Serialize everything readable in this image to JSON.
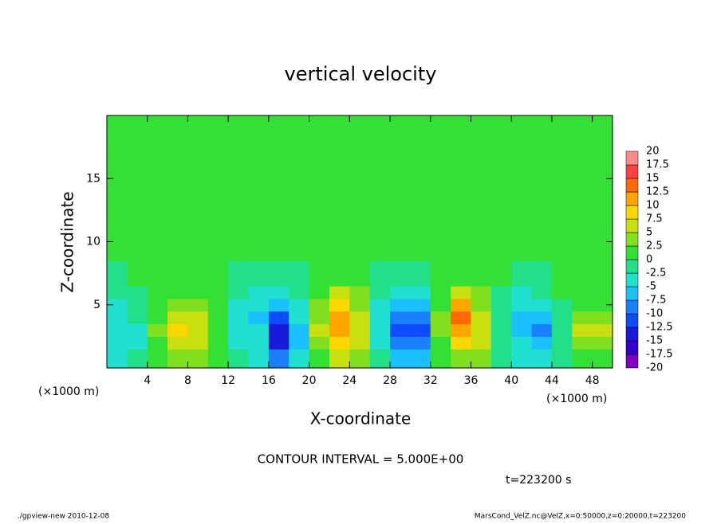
{
  "chart_data": {
    "type": "contour",
    "title": "vertical velocity",
    "x_label": "X-coordinate",
    "y_label": "Z-coordinate",
    "x_unit": "(×1000 m)",
    "contour_interval": "CONTOUR INTERVAL = 5.000E+00",
    "time": "t=223200 s",
    "xlim": [
      0,
      50
    ],
    "ylim": [
      0,
      20
    ],
    "xticks": [
      4,
      8,
      12,
      16,
      20,
      24,
      28,
      32,
      36,
      40,
      44,
      48
    ],
    "yticks": [
      5,
      10,
      15
    ],
    "x": [
      1,
      3,
      5,
      7,
      9,
      11,
      13,
      15,
      17,
      19,
      21,
      23,
      25,
      27,
      29,
      31,
      33,
      35,
      37,
      39,
      41,
      43,
      45,
      47,
      49
    ],
    "y": [
      1,
      2,
      3,
      4,
      5,
      6,
      7,
      10,
      15,
      19
    ],
    "values": [
      [
        -3,
        -2,
        1,
        3,
        3,
        1,
        -2,
        -3,
        -8,
        -4,
        2,
        5,
        3,
        -2,
        -6,
        -6,
        1,
        4,
        3,
        -1,
        -4,
        -5,
        -1,
        2,
        2
      ],
      [
        -4,
        -3,
        2,
        6,
        5,
        2,
        -3,
        -4,
        -13,
        -6,
        4,
        9,
        5,
        -3,
        -9,
        -10,
        2,
        9,
        5,
        -1,
        -5,
        -7,
        -2,
        4,
        4
      ],
      [
        -4,
        -3,
        3,
        8,
        6,
        2,
        -4,
        -5,
        -14,
        -6,
        5,
        12,
        7,
        -4,
        -11,
        -12,
        3,
        12,
        6,
        -1,
        -6,
        -8,
        -2,
        6,
        5
      ],
      [
        -4,
        -2,
        2,
        6,
        5,
        1,
        -5,
        -6,
        -11,
        -5,
        4,
        11,
        6,
        -4,
        -9,
        -10,
        3,
        13,
        6,
        -2,
        -6,
        -6,
        -1,
        4,
        3
      ],
      [
        -3,
        -2,
        1,
        4,
        3,
        1,
        -4,
        -5,
        -6,
        -3,
        3,
        8,
        4,
        -3,
        -6,
        -6,
        2,
        10,
        4,
        -1,
        -5,
        -4,
        -1,
        2,
        2
      ],
      [
        -2,
        -1,
        1,
        2,
        2,
        0,
        -2,
        -3,
        -3,
        -2,
        2,
        5,
        3,
        -2,
        -3,
        -3,
        1,
        6,
        3,
        -1,
        -3,
        -2,
        0,
        1,
        1
      ],
      [
        -1,
        0,
        0,
        1,
        1,
        0,
        -1,
        -1,
        -1,
        -1,
        1,
        2,
        1,
        -1,
        -1,
        -1,
        1,
        2,
        1,
        0,
        -1,
        -1,
        0,
        0,
        0
      ],
      [
        0,
        0,
        0,
        0,
        0,
        0,
        0,
        0,
        0,
        0,
        0,
        0,
        0,
        0,
        0,
        0,
        0,
        0,
        0,
        0,
        0,
        0,
        0,
        0,
        0
      ],
      [
        0,
        0,
        0,
        0,
        0,
        0,
        0,
        0,
        0,
        0,
        0,
        0,
        0,
        0,
        0,
        0,
        0,
        0,
        0,
        0,
        0,
        0,
        0,
        0,
        0
      ],
      [
        0,
        0,
        0,
        0,
        0,
        0,
        0,
        0,
        0,
        0,
        0,
        0,
        0,
        0,
        0,
        0,
        0,
        0,
        0,
        0,
        0,
        0,
        0,
        0,
        0
      ]
    ],
    "levels": [
      -20,
      -17.5,
      -15,
      -12.5,
      -10,
      -7.5,
      -5,
      -2.5,
      0,
      2.5,
      5,
      7.5,
      10,
      12.5,
      15,
      17.5,
      20
    ],
    "colors": [
      "#8000c0",
      "#3300cc",
      "#1a1ad9",
      "#0d4dff",
      "#1a80ff",
      "#1ac0ff",
      "#20e0d0",
      "#22e08a",
      "#33e033",
      "#80e020",
      "#c8e010",
      "#ffd700",
      "#ffa500",
      "#ff6a00",
      "#ff4040",
      "#ff8a8a"
    ]
  },
  "footer": {
    "left": "./gpview-new  2010-12-08",
    "right": "MarsCond_VelZ.nc@VelZ,x=0:50000,z=0:20000,t=223200"
  }
}
